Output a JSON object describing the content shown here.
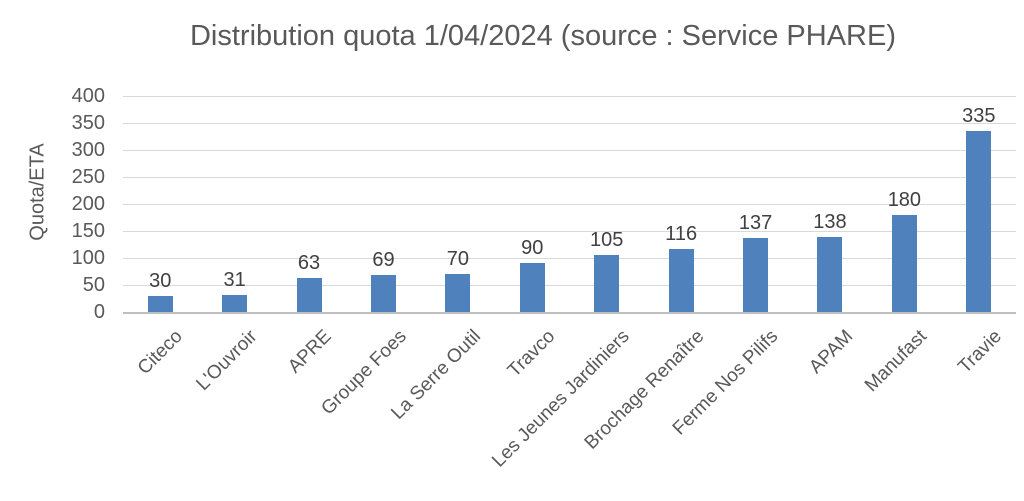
{
  "title": "Distribution quota 1/04/2024 (source : Service PHARE)",
  "chart_data": {
    "type": "bar",
    "title": "Distribution quota 1/04/2024 (source : Service PHARE)",
    "xlabel": "",
    "ylabel": "Quota/ETA",
    "categories": [
      "Citeco",
      "L'Ouvroir",
      "APRE",
      "Groupe Foes",
      "La Serre Outil",
      "Travco",
      "Les Jeunes Jardiniers",
      "Brochage Renaître",
      "Ferme Nos Pilifs",
      "APAM",
      "Manufast",
      "Travie"
    ],
    "values": [
      30,
      31,
      63,
      69,
      70,
      90,
      105,
      116,
      137,
      138,
      180,
      335
    ],
    "ylim": [
      0,
      400
    ],
    "yticks": [
      0,
      50,
      100,
      150,
      200,
      250,
      300,
      350,
      400
    ],
    "grid": true,
    "legend_position": "none",
    "data_labels": true
  },
  "colors": {
    "bar": "#4F81BD",
    "title_text": "#595959",
    "axis_text": "#595959",
    "data_label_text": "#404040",
    "gridline": "#D9D9D9",
    "axis_line": "#BFBFBF",
    "background": "#FFFFFF"
  }
}
